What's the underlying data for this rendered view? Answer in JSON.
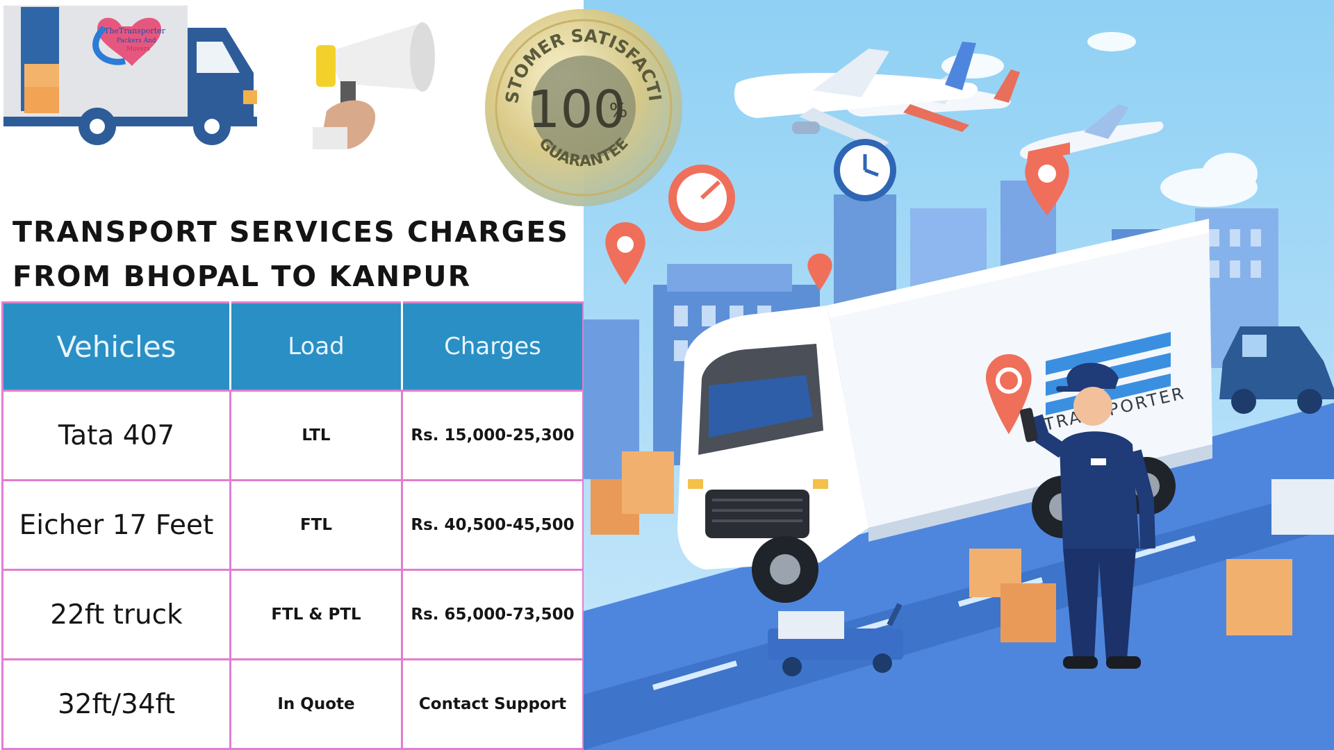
{
  "logo": {
    "brand_line1": "TheTransporter",
    "brand_line2": "Packers And",
    "brand_line3": "Movers"
  },
  "seal": {
    "top_text": "CUSTOMER SATISFACTION",
    "number": "100",
    "unit": "%",
    "bottom_text": "GUARANTEE"
  },
  "headline": {
    "line1": "TRANSPORT SERVICES CHARGES",
    "line2": "FROM BHOPAL TO KANPUR"
  },
  "table": {
    "headers": [
      "Vehicles",
      "Load",
      "Charges"
    ],
    "rows": [
      {
        "vehicle": "Tata 407",
        "load": "LTL",
        "charges": "Rs. 15,000-25,300"
      },
      {
        "vehicle": "Eicher 17 Feet",
        "load": "FTL",
        "charges": "Rs. 40,500-45,500"
      },
      {
        "vehicle": "22ft truck",
        "load": "FTL & PTL",
        "charges": "Rs. 65,000-73,500"
      },
      {
        "vehicle": "32ft/34ft",
        "load": "In Quote",
        "charges": "Contact Support"
      }
    ]
  },
  "illustration": {
    "truck_text": "TRANSPORTER"
  },
  "colors": {
    "header_blue": "#2a8fc4",
    "table_border": "#e07ed0",
    "sky": "#a9dcf7",
    "pin_red": "#ef6f5b",
    "truck_navy": "#2c5a95"
  }
}
